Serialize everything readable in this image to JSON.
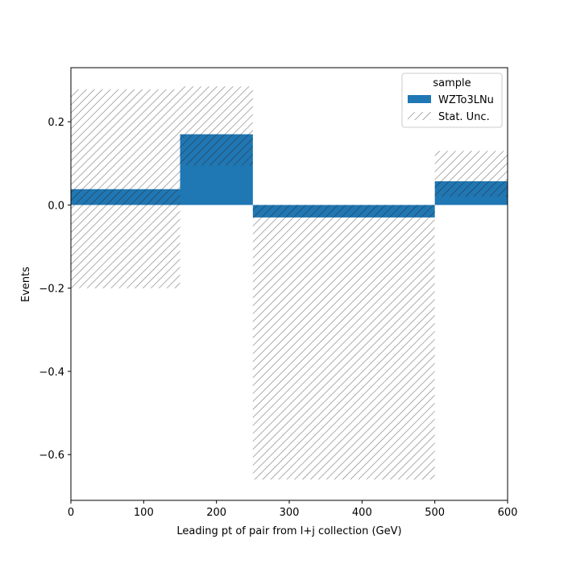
{
  "chart_data": {
    "type": "bar",
    "xlabel": "Leading pt of pair from l+j collection (GeV)",
    "ylabel": "Events",
    "xlim": [
      0,
      600
    ],
    "ylim": [
      -0.71,
      0.33
    ],
    "xticks": [
      0,
      100,
      200,
      300,
      400,
      500,
      600
    ],
    "xtick_labels": [
      "0",
      "100",
      "200",
      "300",
      "400",
      "500",
      "600"
    ],
    "yticks": [
      -0.6,
      -0.4,
      -0.2,
      0.0,
      0.2
    ],
    "ytick_labels": [
      "−0.6",
      "−0.4",
      "−0.2",
      "0.0",
      "0.2"
    ],
    "grid": false,
    "legend": {
      "title": "sample",
      "placement": "top-right",
      "entries": [
        "WZTo3LNu",
        "Stat. Unc."
      ]
    },
    "bins": [
      {
        "x_low": 0,
        "x_high": 150,
        "value": 0.038,
        "unc_low": -0.2,
        "unc_high": 0.278
      },
      {
        "x_low": 150,
        "x_high": 250,
        "value": 0.17,
        "unc_low": 0.095,
        "unc_high": 0.285
      },
      {
        "x_low": 250,
        "x_high": 500,
        "value": -0.03,
        "unc_low": -0.66,
        "unc_high": 0.0
      },
      {
        "x_low": 500,
        "x_high": 600,
        "value": 0.057,
        "unc_low": 0.02,
        "unc_high": 0.13
      }
    ],
    "series": [
      {
        "name": "WZTo3LNu",
        "color": "#1f77b4"
      },
      {
        "name": "Stat. Unc.",
        "color": "#808080",
        "style": "hatched"
      }
    ]
  }
}
